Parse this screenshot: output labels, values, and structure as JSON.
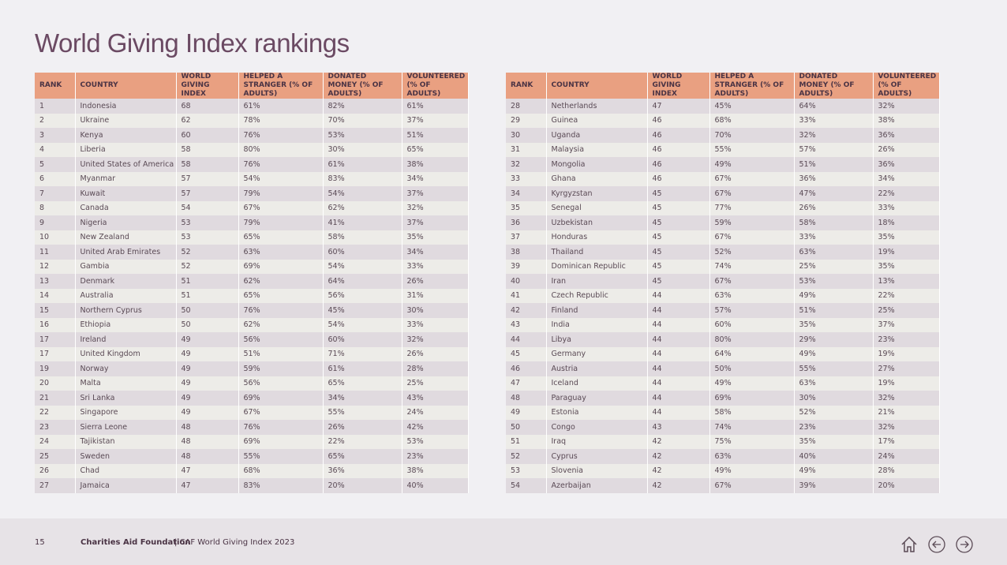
{
  "header": {
    "title": "World Giving Index rankings"
  },
  "tables": [
    {
      "columns": [
        "RANK",
        "COUNTRY",
        "WORLD GIVING INDEX",
        "HELPED A STRANGER (% OF ADULTS)",
        "DONATED MONEY (% OF ADULTS)",
        "VOLUNTEERED (% OF ADULTS)"
      ],
      "rows": [
        [
          "1",
          "Indonesia",
          "68",
          "61%",
          "82%",
          "61%"
        ],
        [
          "2",
          "Ukraine",
          "62",
          "78%",
          "70%",
          "37%"
        ],
        [
          "3",
          "Kenya",
          "60",
          "76%",
          "53%",
          "51%"
        ],
        [
          "4",
          "Liberia",
          "58",
          "80%",
          "30%",
          "65%"
        ],
        [
          "5",
          "United States of America",
          "58",
          "76%",
          "61%",
          "38%"
        ],
        [
          "6",
          "Myanmar",
          "57",
          "54%",
          "83%",
          "34%"
        ],
        [
          "7",
          "Kuwait",
          "57",
          "79%",
          "54%",
          "37%"
        ],
        [
          "8",
          "Canada",
          "54",
          "67%",
          "62%",
          "32%"
        ],
        [
          "9",
          "Nigeria",
          "53",
          "79%",
          "41%",
          "37%"
        ],
        [
          "10",
          "New Zealand",
          "53",
          "65%",
          "58%",
          "35%"
        ],
        [
          "11",
          "United Arab Emirates",
          "52",
          "63%",
          "60%",
          "34%"
        ],
        [
          "12",
          "Gambia",
          "52",
          "69%",
          "54%",
          "33%"
        ],
        [
          "13",
          "Denmark",
          "51",
          "62%",
          "64%",
          "26%"
        ],
        [
          "14",
          "Australia",
          "51",
          "65%",
          "56%",
          "31%"
        ],
        [
          "15",
          "Northern Cyprus",
          "50",
          "76%",
          "45%",
          "30%"
        ],
        [
          "16",
          "Ethiopia",
          "50",
          "62%",
          "54%",
          "33%"
        ],
        [
          "17",
          "Ireland",
          "49",
          "56%",
          "60%",
          "32%"
        ],
        [
          "17",
          "United Kingdom",
          "49",
          "51%",
          "71%",
          "26%"
        ],
        [
          "19",
          "Norway",
          "49",
          "59%",
          "61%",
          "28%"
        ],
        [
          "20",
          "Malta",
          "49",
          "56%",
          "65%",
          "25%"
        ],
        [
          "21",
          "Sri Lanka",
          "49",
          "69%",
          "34%",
          "43%"
        ],
        [
          "22",
          "Singapore",
          "49",
          "67%",
          "55%",
          "24%"
        ],
        [
          "23",
          "Sierra Leone",
          "48",
          "76%",
          "26%",
          "42%"
        ],
        [
          "24",
          "Tajikistan",
          "48",
          "69%",
          "22%",
          "53%"
        ],
        [
          "25",
          "Sweden",
          "48",
          "55%",
          "65%",
          "23%"
        ],
        [
          "26",
          "Chad",
          "47",
          "68%",
          "36%",
          "38%"
        ],
        [
          "27",
          "Jamaica",
          "47",
          "83%",
          "20%",
          "40%"
        ]
      ]
    },
    {
      "columns": [
        "RANK",
        "COUNTRY",
        "WORLD GIVING INDEX",
        "HELPED A STRANGER (% OF ADULTS)",
        "DONATED MONEY (% OF ADULTS)",
        "VOLUNTEERED (% OF ADULTS)"
      ],
      "rows": [
        [
          "28",
          "Netherlands",
          "47",
          "45%",
          "64%",
          "32%"
        ],
        [
          "29",
          "Guinea",
          "46",
          "68%",
          "33%",
          "38%"
        ],
        [
          "30",
          "Uganda",
          "46",
          "70%",
          "32%",
          "36%"
        ],
        [
          "31",
          "Malaysia",
          "46",
          "55%",
          "57%",
          "26%"
        ],
        [
          "32",
          "Mongolia",
          "46",
          "49%",
          "51%",
          "36%"
        ],
        [
          "33",
          "Ghana",
          "46",
          "67%",
          "36%",
          "34%"
        ],
        [
          "34",
          "Kyrgyzstan",
          "45",
          "67%",
          "47%",
          "22%"
        ],
        [
          "35",
          "Senegal",
          "45",
          "77%",
          "26%",
          "33%"
        ],
        [
          "36",
          "Uzbekistan",
          "45",
          "59%",
          "58%",
          "18%"
        ],
        [
          "37",
          "Honduras",
          "45",
          "67%",
          "33%",
          "35%"
        ],
        [
          "38",
          "Thailand",
          "45",
          "52%",
          "63%",
          "19%"
        ],
        [
          "39",
          "Dominican Republic",
          "45",
          "74%",
          "25%",
          "35%"
        ],
        [
          "40",
          "Iran",
          "45",
          "67%",
          "53%",
          "13%"
        ],
        [
          "41",
          "Czech Republic",
          "44",
          "63%",
          "49%",
          "22%"
        ],
        [
          "42",
          "Finland",
          "44",
          "57%",
          "51%",
          "25%"
        ],
        [
          "43",
          "India",
          "44",
          "60%",
          "35%",
          "37%"
        ],
        [
          "44",
          "Libya",
          "44",
          "80%",
          "29%",
          "23%"
        ],
        [
          "45",
          "Germany",
          "44",
          "64%",
          "49%",
          "19%"
        ],
        [
          "46",
          "Austria",
          "44",
          "50%",
          "55%",
          "27%"
        ],
        [
          "47",
          "Iceland",
          "44",
          "49%",
          "63%",
          "19%"
        ],
        [
          "48",
          "Paraguay",
          "44",
          "69%",
          "30%",
          "32%"
        ],
        [
          "49",
          "Estonia",
          "44",
          "58%",
          "52%",
          "21%"
        ],
        [
          "50",
          "Congo",
          "43",
          "74%",
          "23%",
          "32%"
        ],
        [
          "51",
          "Iraq",
          "42",
          "75%",
          "35%",
          "17%"
        ],
        [
          "52",
          "Cyprus",
          "42",
          "63%",
          "40%",
          "24%"
        ],
        [
          "53",
          "Slovenia",
          "42",
          "49%",
          "49%",
          "28%"
        ],
        [
          "54",
          "Azerbaijan",
          "42",
          "67%",
          "39%",
          "20%"
        ]
      ]
    }
  ],
  "footer": {
    "page": "15",
    "org": "Charities Aid Foundation",
    "publication": "| CAF World Giving Index 2023"
  }
}
